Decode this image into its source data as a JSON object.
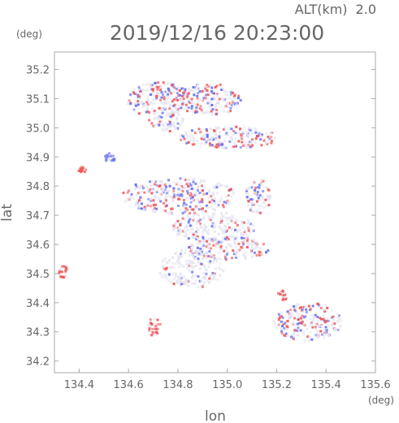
{
  "header": {
    "alt_label": "ALT(km)",
    "alt_value": "2.0",
    "unit_top_left": "(deg)",
    "datetime": "2019/12/16 20:23:00"
  },
  "colors": {
    "frame": "#aaaaaa",
    "text": "#666666",
    "positive": "#f05a5a",
    "negative": "#6a74f0",
    "neutral": "#e6e6f2"
  },
  "chart_data": {
    "type": "heatmap",
    "xlabel": "lon",
    "ylabel": "lat",
    "xunit": "(deg)",
    "xlim": [
      134.3,
      135.6
    ],
    "ylim": [
      34.16,
      35.26
    ],
    "x_ticks": [
      "134.4",
      "134.6",
      "134.8",
      "135.0",
      "135.2",
      "135.4",
      "135.6"
    ],
    "y_ticks": [
      "34.2",
      "34.3",
      "34.4",
      "34.5",
      "34.6",
      "34.7",
      "34.8",
      "34.9",
      "35.0",
      "35.1",
      "35.2"
    ],
    "echo_regions": [
      {
        "lon": 134.72,
        "lat": 35.1,
        "kind": "mixed"
      },
      {
        "lon": 134.92,
        "lat": 35.1,
        "kind": "mixed"
      },
      {
        "lon": 134.75,
        "lat": 35.03,
        "kind": "neutral"
      },
      {
        "lon": 135.0,
        "lat": 34.97,
        "kind": "mixed"
      },
      {
        "lon": 134.41,
        "lat": 34.86,
        "kind": "positive"
      },
      {
        "lon": 134.52,
        "lat": 34.9,
        "kind": "negative"
      },
      {
        "lon": 134.8,
        "lat": 34.77,
        "kind": "mixed"
      },
      {
        "lon": 135.12,
        "lat": 34.77,
        "kind": "mixed"
      },
      {
        "lon": 134.94,
        "lat": 34.66,
        "kind": "neutral"
      },
      {
        "lon": 135.0,
        "lat": 34.59,
        "kind": "mixed"
      },
      {
        "lon": 134.85,
        "lat": 34.52,
        "kind": "neutral"
      },
      {
        "lon": 134.33,
        "lat": 34.51,
        "kind": "positive"
      },
      {
        "lon": 134.7,
        "lat": 34.32,
        "kind": "positive"
      },
      {
        "lon": 135.32,
        "lat": 34.34,
        "kind": "mixed"
      },
      {
        "lon": 135.22,
        "lat": 34.43,
        "kind": "positive"
      }
    ]
  }
}
